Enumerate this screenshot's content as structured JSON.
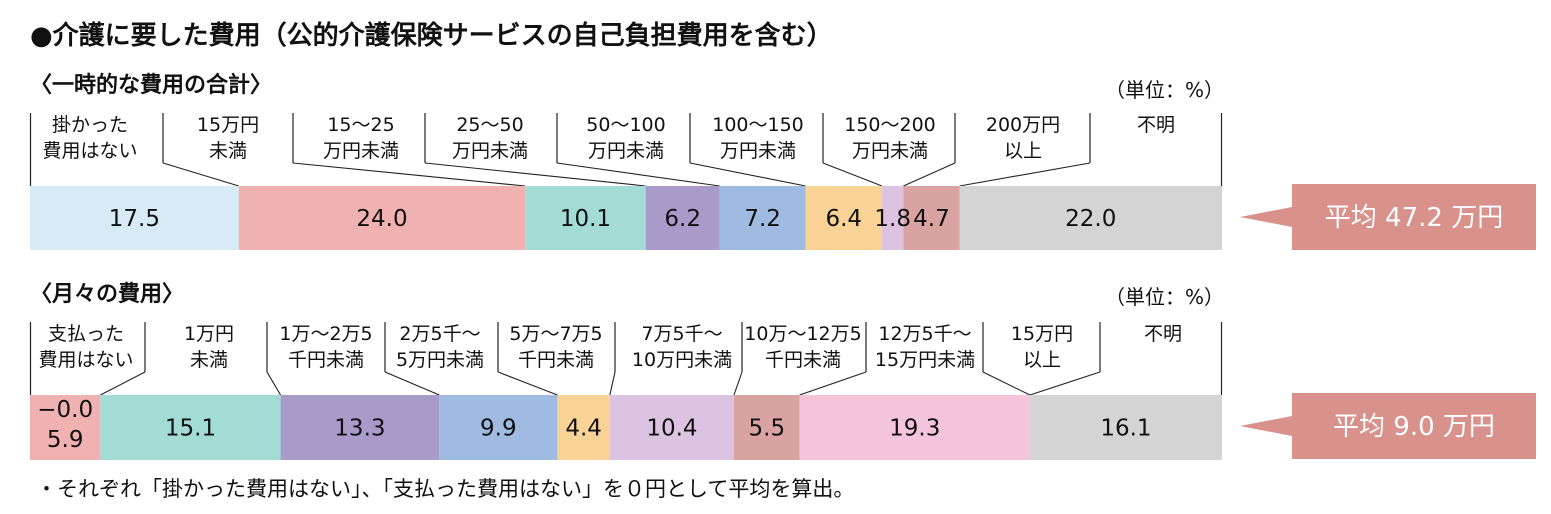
{
  "title": "●介護に要した費用（公的介護保険サービスの自己負担費用を含む）",
  "footnote": "・それぞれ「掛かった費用はない」、「支払った費用はない」を０円として平均を算出。",
  "colors": {
    "light_blue": "#d6ebf6",
    "pink": "#f0b1b1",
    "teal": "#a3dcd4",
    "purple": "#a89ac9",
    "blue": "#a0bbe1",
    "orange": "#f9d296",
    "lavender": "#dcc3e1",
    "rose": "#d9a3a1",
    "light_pink": "#f4c5da",
    "gray": "#d4d4d4",
    "avg_box": "#d9918c"
  },
  "chart_data": [
    {
      "type": "bar",
      "orientation": "horizontal-stacked-100",
      "subtitle": "〈一時的な費用の合計〉",
      "unit": "（単位：%）",
      "average": "平均 47.2 万円",
      "series": [
        {
          "name": "掛かった費用はない",
          "label_lines": [
            "掛かった",
            "費用はない"
          ],
          "value": 17.5,
          "color": "light_blue"
        },
        {
          "name": "15万円未満",
          "label_lines": [
            "15万円",
            "未満"
          ],
          "value": 24.0,
          "color": "pink"
        },
        {
          "name": "15〜25万円未満",
          "label_lines": [
            "15〜25",
            "万円未満"
          ],
          "value": 10.1,
          "color": "teal"
        },
        {
          "name": "25〜50万円未満",
          "label_lines": [
            "25〜50",
            "万円未満"
          ],
          "value": 6.2,
          "color": "purple"
        },
        {
          "name": "50〜100万円未満",
          "label_lines": [
            "50〜100",
            "万円未満"
          ],
          "value": 7.2,
          "color": "blue"
        },
        {
          "name": "100〜150万円未満",
          "label_lines": [
            "100〜150",
            "万円未満"
          ],
          "value": 6.4,
          "color": "orange"
        },
        {
          "name": "150〜200万円未満",
          "label_lines": [
            "150〜200",
            "万円未満"
          ],
          "value": 1.8,
          "color": "lavender"
        },
        {
          "name": "200万円以上",
          "label_lines": [
            "200万円",
            "以上"
          ],
          "value": 4.7,
          "color": "rose"
        },
        {
          "name": "不明",
          "label_lines": [
            "不明"
          ],
          "value": 22.0,
          "color": "gray"
        }
      ]
    },
    {
      "type": "bar",
      "orientation": "horizontal-stacked-100",
      "subtitle": "〈月々の費用〉",
      "unit": "（単位：%）",
      "average": "平均 9.0 万円",
      "series": [
        {
          "name": "支払った費用はない",
          "label_lines": [
            "支払った",
            "費用はない"
          ],
          "value": 5.9,
          "display_value": "−0.0\n5.9",
          "color": "pink"
        },
        {
          "name": "1万円未満",
          "label_lines": [
            "1万円",
            "未満"
          ],
          "value": 15.1,
          "color": "teal"
        },
        {
          "name": "1万〜2万5千円未満",
          "label_lines": [
            "1万〜2万5",
            "千円未満"
          ],
          "value": 13.3,
          "color": "purple"
        },
        {
          "name": "2万5千〜5万円未満",
          "label_lines": [
            "2万5千〜",
            "5万円未満"
          ],
          "value": 9.9,
          "color": "blue"
        },
        {
          "name": "5万〜7万5千円未満",
          "label_lines": [
            "5万〜7万5",
            "千円未満"
          ],
          "value": 4.4,
          "color": "orange"
        },
        {
          "name": "7万5千〜10万円未満",
          "label_lines": [
            "7万5千〜",
            "10万円未満"
          ],
          "value": 10.4,
          "color": "lavender"
        },
        {
          "name": "10万〜12万5千円未満",
          "label_lines": [
            "10万〜12万5",
            "千円未満"
          ],
          "value": 5.5,
          "color": "rose"
        },
        {
          "name": "12万5千〜15万円未満",
          "label_lines": [
            "12万5千〜",
            "15万円未満"
          ],
          "value": 19.3,
          "color": "light_pink"
        },
        {
          "name": "15万円以上",
          "label_lines": [
            "15万円",
            "以上"
          ],
          "value": 0.0,
          "display_value": "",
          "color": "light_pink"
        },
        {
          "name": "不明",
          "label_lines": [
            "不明"
          ],
          "value": 16.1,
          "color": "gray"
        }
      ]
    }
  ]
}
